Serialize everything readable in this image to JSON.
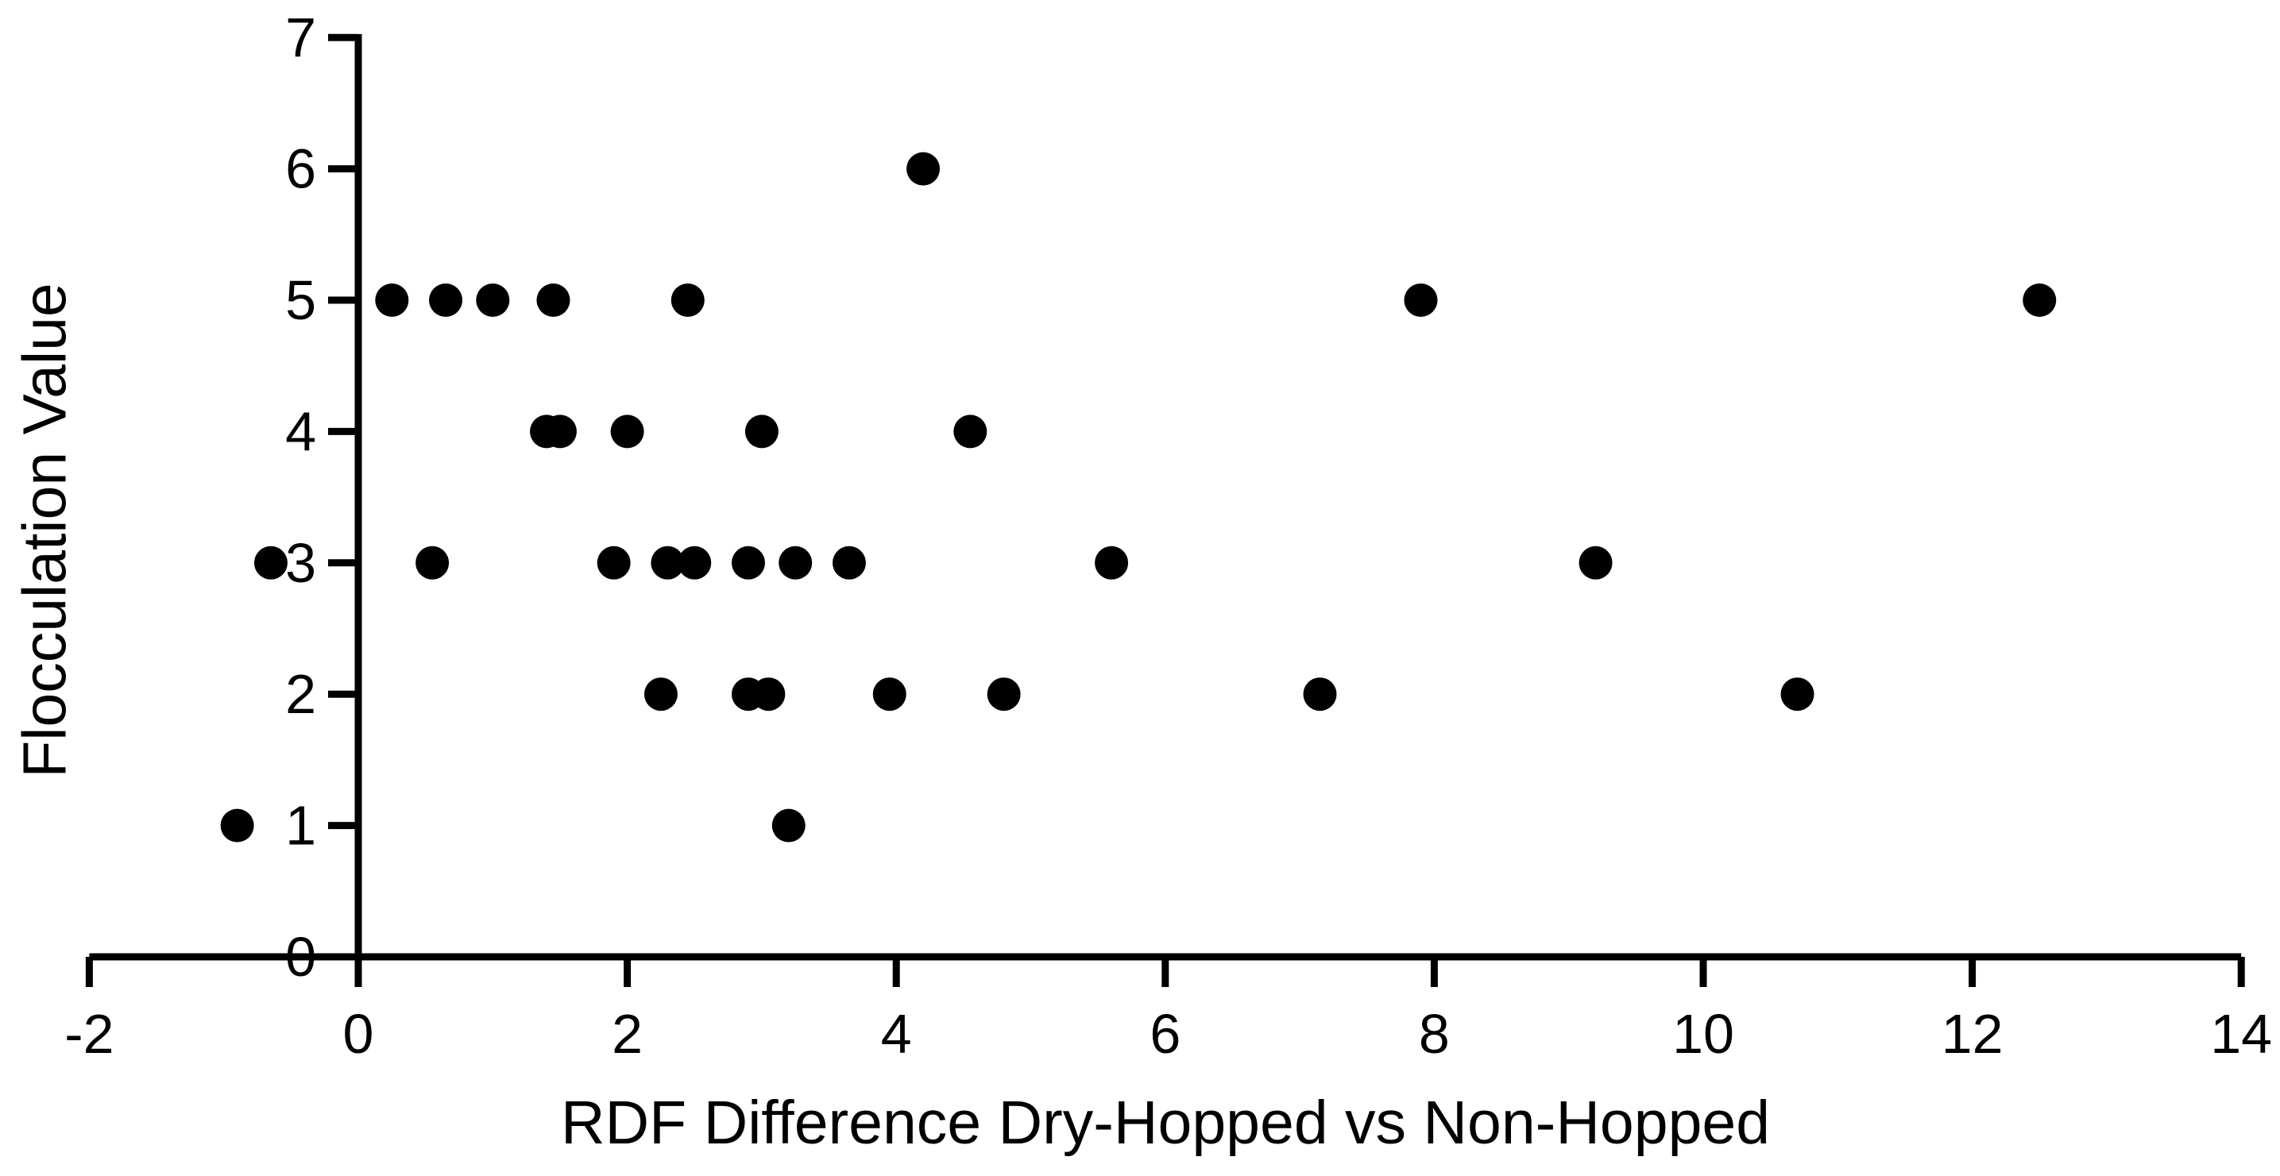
{
  "chart_data": {
    "type": "scatter",
    "title": "",
    "xlabel": "RDF Difference Dry-Hopped vs Non-Hopped",
    "ylabel": "Flocculation Value",
    "xlim": [
      -2,
      14
    ],
    "ylim": [
      0,
      7
    ],
    "x_ticks": [
      -2,
      0,
      2,
      4,
      6,
      8,
      10,
      12,
      14
    ],
    "y_ticks": [
      0,
      1,
      2,
      3,
      4,
      5,
      6,
      7
    ],
    "grid": false,
    "legend": false,
    "marker_style": "filled-circle",
    "marker_color": "#000000",
    "background_color": "#ffffff",
    "points": [
      {
        "x": -0.9,
        "y": 1
      },
      {
        "x": 3.2,
        "y": 1
      },
      {
        "x": 2.25,
        "y": 2
      },
      {
        "x": 2.9,
        "y": 2
      },
      {
        "x": 3.05,
        "y": 2
      },
      {
        "x": 3.95,
        "y": 2
      },
      {
        "x": 4.8,
        "y": 2
      },
      {
        "x": 7.15,
        "y": 2
      },
      {
        "x": 10.7,
        "y": 2
      },
      {
        "x": -0.65,
        "y": 3
      },
      {
        "x": 0.55,
        "y": 3
      },
      {
        "x": 1.9,
        "y": 3
      },
      {
        "x": 2.3,
        "y": 3
      },
      {
        "x": 2.5,
        "y": 3
      },
      {
        "x": 2.9,
        "y": 3
      },
      {
        "x": 3.25,
        "y": 3
      },
      {
        "x": 3.65,
        "y": 3
      },
      {
        "x": 5.6,
        "y": 3
      },
      {
        "x": 9.2,
        "y": 3
      },
      {
        "x": 1.4,
        "y": 4
      },
      {
        "x": 1.5,
        "y": 4
      },
      {
        "x": 2.0,
        "y": 4
      },
      {
        "x": 3.0,
        "y": 4
      },
      {
        "x": 4.55,
        "y": 4
      },
      {
        "x": 0.25,
        "y": 5
      },
      {
        "x": 0.65,
        "y": 5
      },
      {
        "x": 1.0,
        "y": 5
      },
      {
        "x": 1.45,
        "y": 5
      },
      {
        "x": 2.45,
        "y": 5
      },
      {
        "x": 7.9,
        "y": 5
      },
      {
        "x": 12.5,
        "y": 5
      },
      {
        "x": 4.2,
        "y": 6
      }
    ]
  }
}
